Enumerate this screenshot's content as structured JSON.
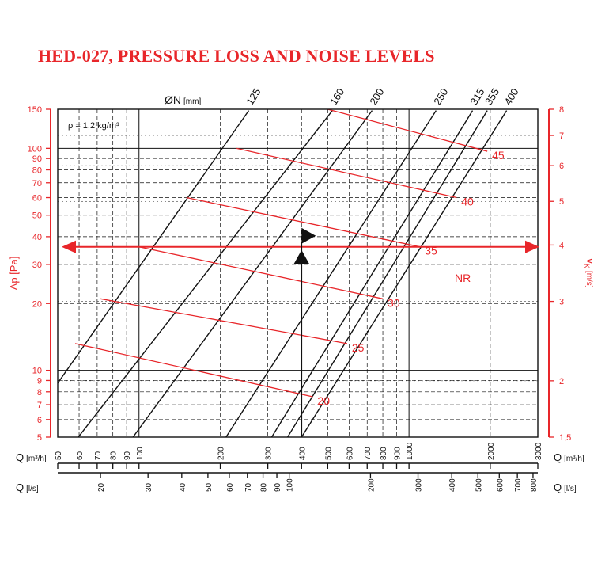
{
  "title": "HED-027, PRESSURE LOSS AND NOISE LEVELS",
  "colors": {
    "red": "#e8262a",
    "black": "#111111"
  },
  "chart_data": {
    "type": "line",
    "title": "HED-027, PRESSURE LOSS AND NOISE LEVELS",
    "scale": "log-log",
    "grid": true,
    "density_note": "ρ = 1,2 kg/m³",
    "diameter_axis": {
      "label_main": "ØN",
      "label_unit": "[mm]"
    },
    "x_axis_m3h": {
      "label_main": "Q",
      "label_unit": "[m³/h]",
      "range": [
        50,
        3000
      ],
      "ticks": [
        "50",
        "60",
        "70",
        "80",
        "90",
        "100",
        "200",
        "300",
        "400",
        "500",
        "600",
        "700",
        "800",
        "900",
        "1000",
        "2000",
        "3000"
      ]
    },
    "x_axis_ls": {
      "label_main": "Q",
      "label_unit": "[l/s]",
      "range": [
        13.9,
        833
      ],
      "ticks": [
        "20",
        "30",
        "40",
        "50",
        "60",
        "70",
        "80",
        "90",
        "100",
        "200",
        "300",
        "400",
        "500",
        "600",
        "700",
        "800"
      ]
    },
    "y_axis_left": {
      "label": "Δp [Pa]",
      "range": [
        5,
        150
      ],
      "ticks": [
        "5",
        "6",
        "7",
        "8",
        "9",
        "10",
        "20",
        "30",
        "40",
        "50",
        "60",
        "70",
        "80",
        "90",
        "100",
        "150"
      ]
    },
    "y_axis_right": {
      "label_main": "v",
      "label_sub": "K",
      "label_unit": "[m/s]",
      "range": [
        1.5,
        8
      ],
      "ticks": [
        "1,5",
        "2",
        "3",
        "4",
        "5",
        "6",
        "7",
        "8"
      ]
    },
    "series": [
      {
        "name": "125",
        "points": [
          [
            50,
            8.75
          ],
          [
            255,
            148
          ]
        ]
      },
      {
        "name": "160",
        "points": [
          [
            50,
            3.8
          ],
          [
            520,
            148
          ]
        ]
      },
      {
        "name": "200",
        "points": [
          [
            95,
            5
          ],
          [
            730,
            148
          ]
        ]
      },
      {
        "name": "250",
        "points": [
          [
            210,
            5
          ],
          [
            1260,
            148
          ]
        ]
      },
      {
        "name": "315",
        "points": [
          [
            310,
            5
          ],
          [
            1720,
            148
          ]
        ]
      },
      {
        "name": "355",
        "points": [
          [
            355,
            5
          ],
          [
            1950,
            148
          ]
        ]
      },
      {
        "name": "400",
        "points": [
          [
            400,
            5
          ],
          [
            2300,
            148
          ]
        ]
      }
    ],
    "noise_lines": [
      {
        "name": "45",
        "points": [
          [
            500,
            150
          ],
          [
            1950,
            97
          ]
        ]
      },
      {
        "name": "40",
        "points": [
          [
            230,
            100
          ],
          [
            1500,
            60
          ]
        ]
      },
      {
        "name": "35",
        "points": [
          [
            150,
            60
          ],
          [
            1100,
            36
          ]
        ]
      },
      {
        "name": "30",
        "points": [
          [
            100,
            36
          ],
          [
            800,
            21
          ]
        ]
      },
      {
        "name": "25",
        "points": [
          [
            72,
            21
          ],
          [
            590,
            13.2
          ]
        ]
      },
      {
        "name": "20",
        "points": [
          [
            58,
            13.2
          ],
          [
            440,
            7.6
          ]
        ]
      }
    ],
    "noise_label": "NR",
    "example": {
      "q_m3h": 400,
      "dp_pa": 36
    }
  }
}
